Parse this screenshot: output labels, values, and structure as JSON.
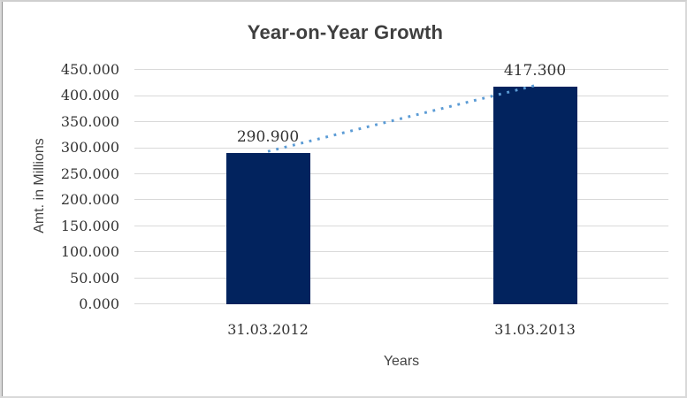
{
  "chart_data": {
    "type": "bar",
    "title": "Year-on-Year Growth",
    "xlabel": "Years",
    "ylabel": "Amt. in Millions",
    "categories": [
      "31.03.2012",
      "31.03.2013"
    ],
    "values": [
      290.9,
      417.3
    ],
    "value_labels": [
      "290.900",
      "417.300"
    ],
    "ylim": [
      0,
      450
    ],
    "ytick_step": 50,
    "ytick_labels": [
      "0.000",
      "50.000",
      "100.000",
      "150.000",
      "200.000",
      "250.000",
      "300.000",
      "350.000",
      "400.000",
      "450.000"
    ],
    "grid": true,
    "legend": "none",
    "trendline": {
      "style": "dotted",
      "color": "#5B9BD5",
      "from_value": 290.9,
      "to_value": 417.3
    },
    "colors": {
      "bar": "#02235E",
      "gridline": "#D9D9D9",
      "text": "#333333",
      "title": "#3F3F3F",
      "frame": "#D9D9D9"
    }
  }
}
